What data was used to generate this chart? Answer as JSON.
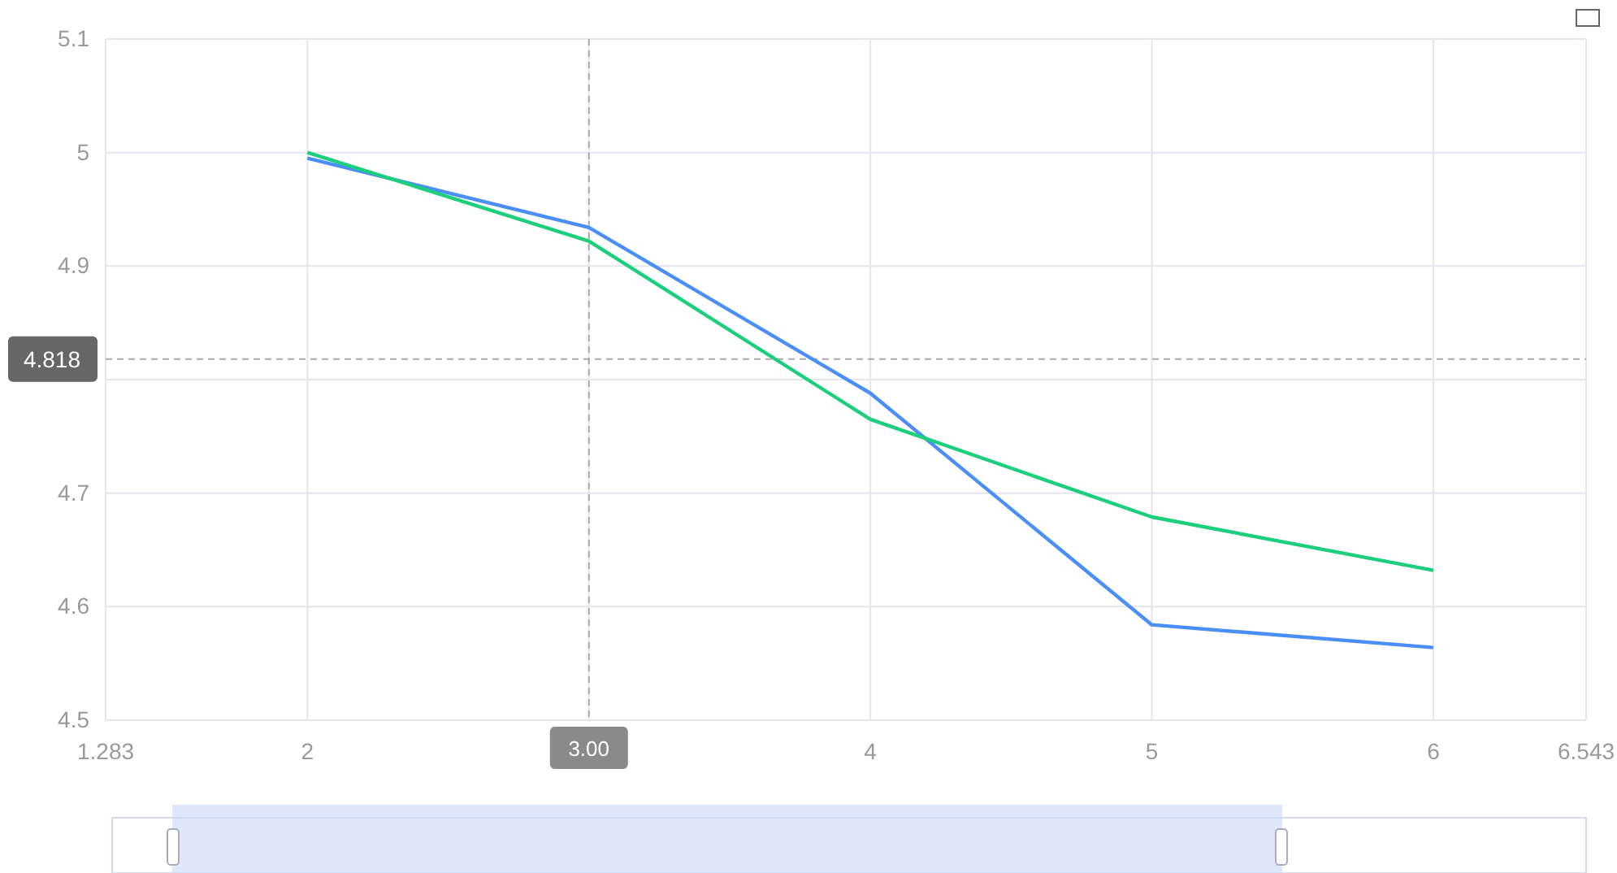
{
  "chart_data": {
    "type": "line",
    "x": [
      2,
      3,
      4,
      5,
      6
    ],
    "series": [
      {
        "color": "#4a8ef8",
        "values": [
          4.995,
          4.934,
          4.788,
          4.584,
          4.564
        ]
      },
      {
        "color": "#1ccf7c",
        "values": [
          5.0,
          4.922,
          4.765,
          4.679,
          4.632
        ]
      }
    ],
    "xlim": [
      1.283,
      6.543
    ],
    "xticks": [
      1.283,
      2,
      {
        "value": 3,
        "label": null
      },
      4,
      5,
      6,
      6.543
    ],
    "ylim": [
      4.5,
      5.1
    ],
    "yticks": [
      4.5,
      4.6,
      4.7,
      {
        "value": 4.8,
        "label": null
      },
      4.9,
      5,
      5.1
    ],
    "grid": true,
    "marker": "none",
    "line_style": "solid",
    "ref_lines": [
      {
        "axis": "x",
        "value": 3,
        "label": "3.00",
        "line_style": "dashed",
        "color": "#aaaaaa"
      },
      {
        "axis": "y",
        "value": 4.818,
        "label": "4.818",
        "line_style": "dashed",
        "color": "#aaaaaa"
      }
    ]
  }
}
